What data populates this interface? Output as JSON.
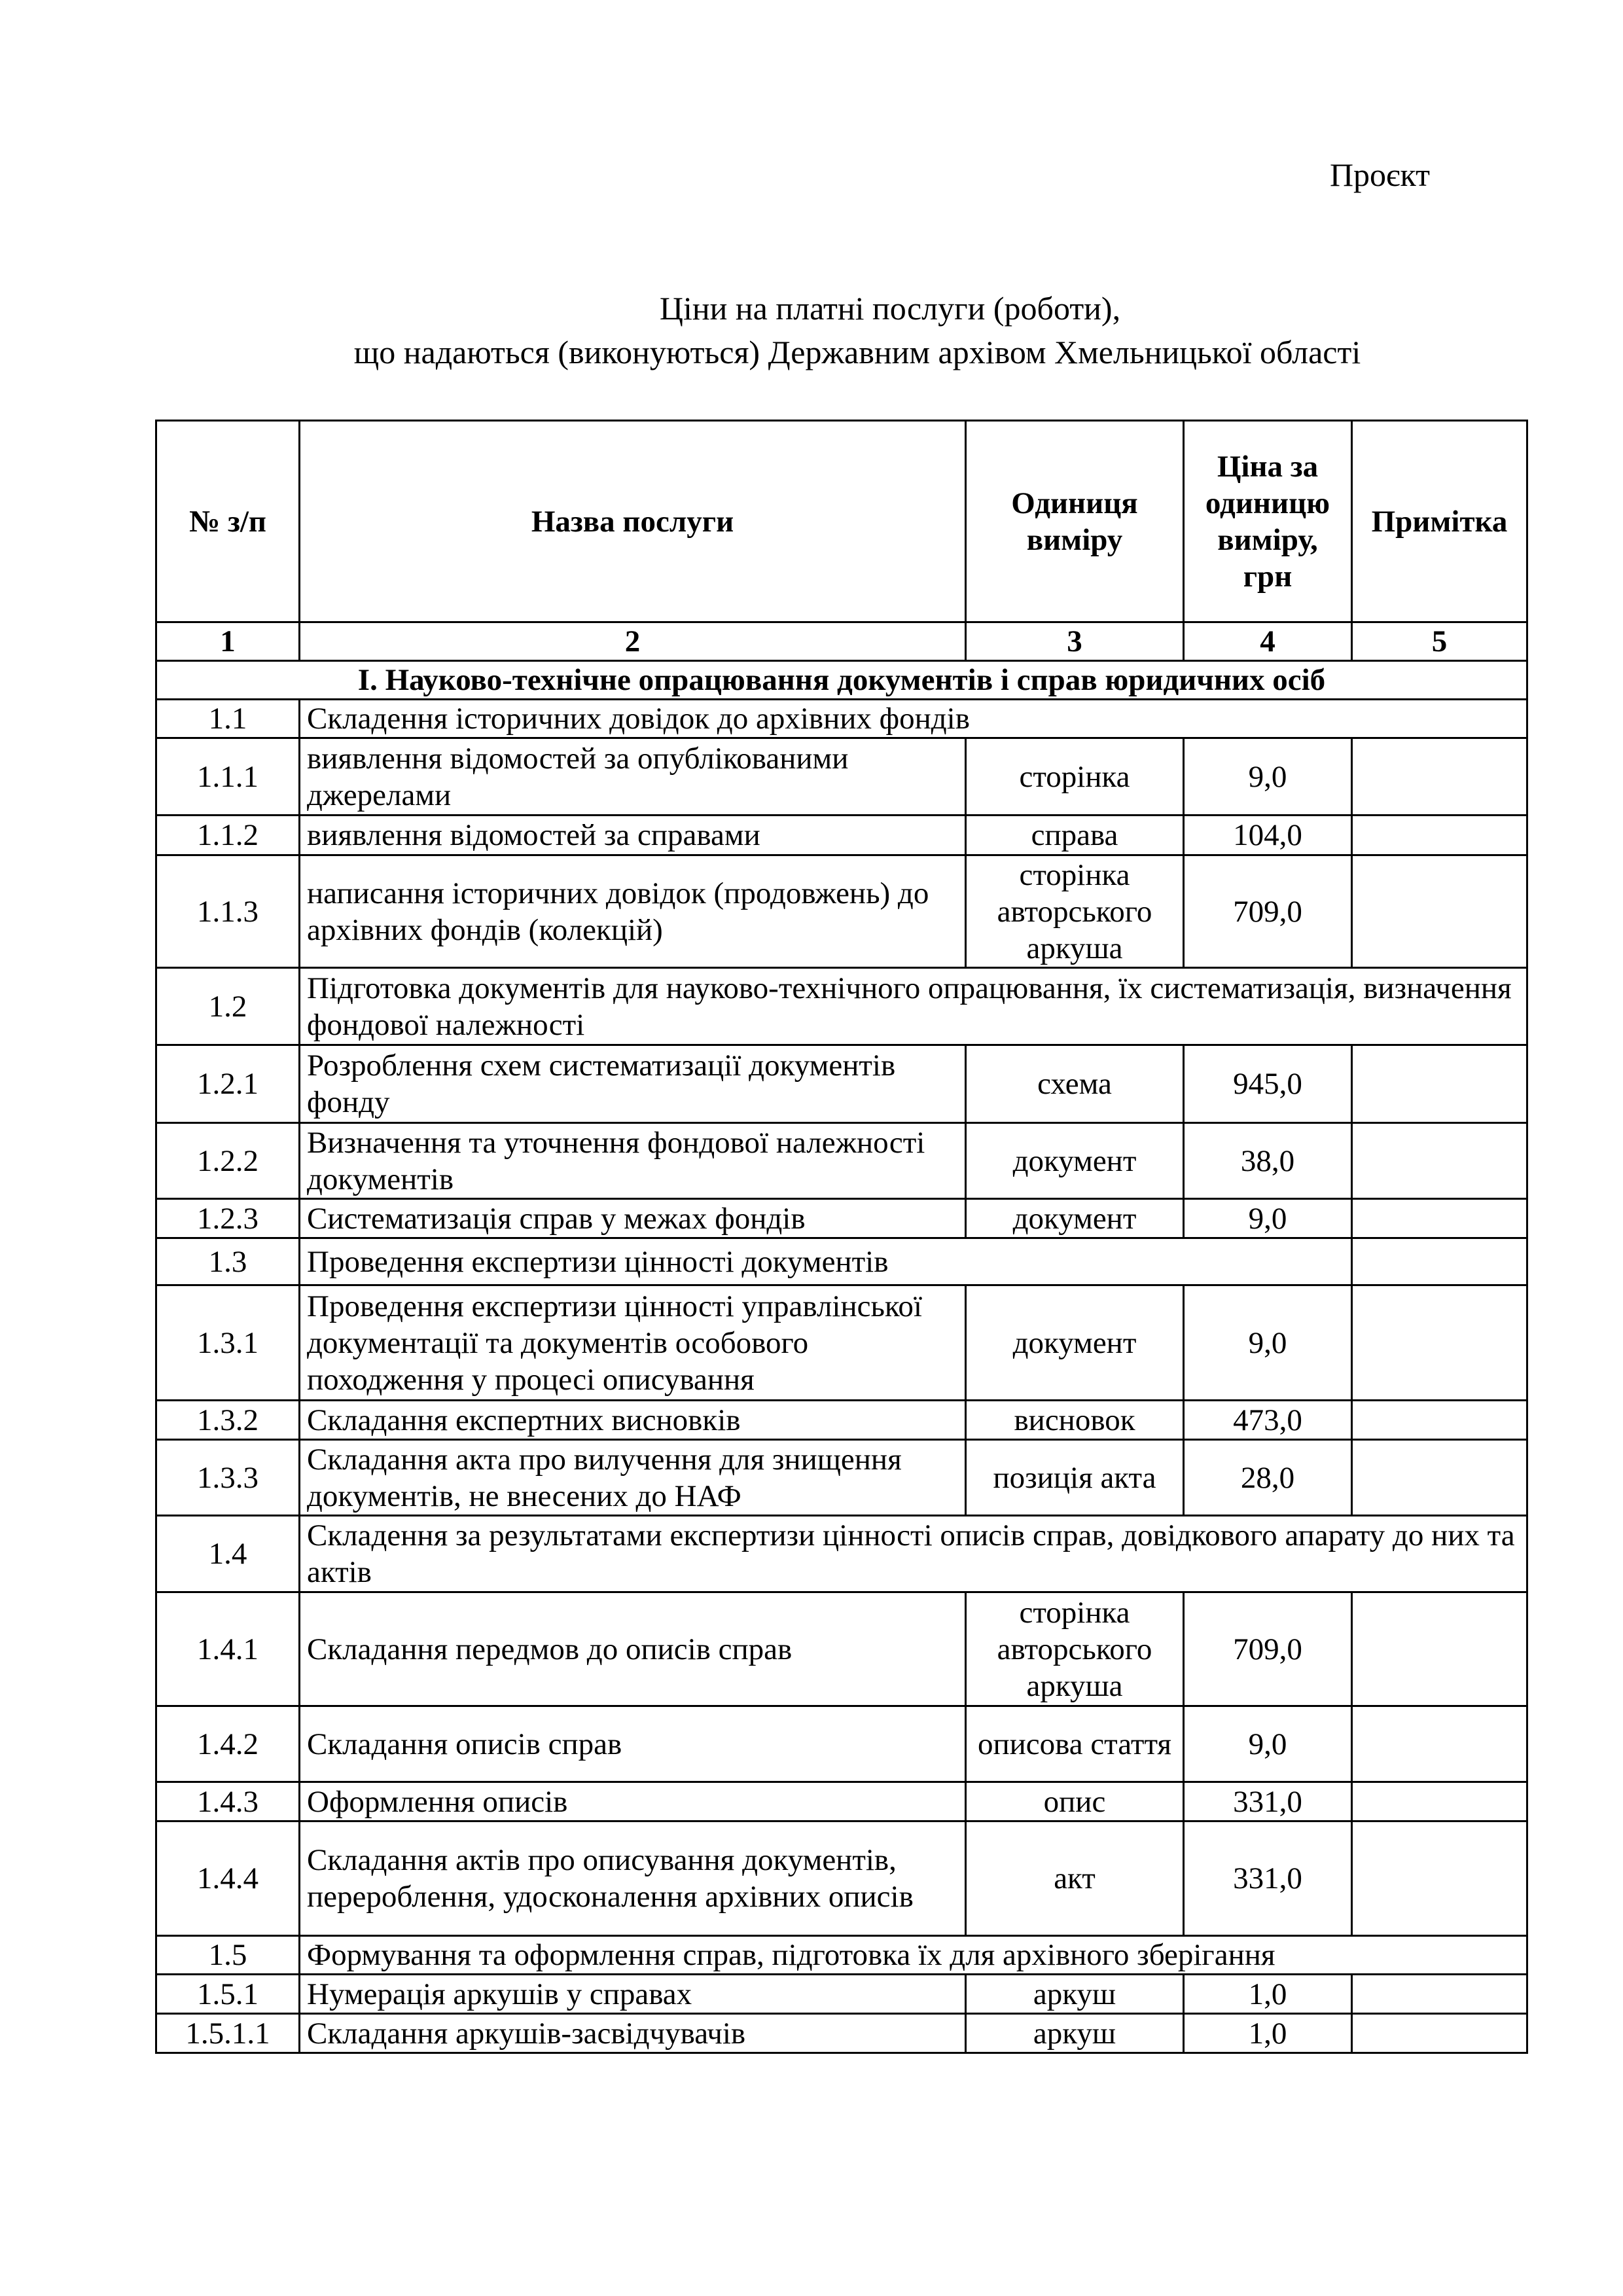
{
  "status_label": "Проєкт",
  "title": {
    "line1": "Ціни на платні послуги (роботи),",
    "line2": "що надаються (виконуються) Державним архівом Хмельницької області"
  },
  "table": {
    "headers": [
      "№ з/п",
      "Назва послуги",
      "Одиниця виміру",
      "Ціна за одиницю виміру, грн",
      "Примітка"
    ],
    "column_numbers": [
      "1",
      "2",
      "3",
      "4",
      "5"
    ],
    "rows": [
      {
        "type": "section",
        "name": "І. Науково-технічне опрацювання документів і справ юридичних осіб"
      },
      {
        "type": "group",
        "no": "1.1",
        "name": "Складення історичних довідок  до архівних фондів"
      },
      {
        "type": "item",
        "no": "1.1.1",
        "name": "виявлення відомостей за опублікованими джерелами",
        "unit": "сторінка",
        "price": "9,0",
        "note": ""
      },
      {
        "type": "item",
        "no": "1.1.2",
        "name": "виявлення відомостей за справами",
        "unit": "справа",
        "price": "104,0",
        "note": ""
      },
      {
        "type": "item",
        "no": "1.1.3",
        "name": "написання історичних довідок (продовжень) до архівних фондів (колекцій)",
        "unit": "сторінка авторського аркуша",
        "price": "709,0",
        "note": ""
      },
      {
        "type": "group",
        "no": "1.2",
        "name": "Підготовка документів для науково-технічного опрацювання, їх систематизація, визначення фондової належності"
      },
      {
        "type": "item",
        "no": "1.2.1",
        "name": "Розроблення схем систематизації документів фонду",
        "unit": "схема",
        "price": "945,0",
        "note": ""
      },
      {
        "type": "item",
        "no": "1.2.2",
        "name": "Визначення та уточнення фондової належності документів",
        "unit": "документ",
        "price": "38,0",
        "note": ""
      },
      {
        "type": "item",
        "no": "1.2.3",
        "name": "Систематизація справ у межах фондів",
        "unit": "документ",
        "price": "9,0",
        "note": ""
      },
      {
        "type": "group3",
        "no": "1.3",
        "name": "Проведення експертизи цінності документів",
        "note": ""
      },
      {
        "type": "item",
        "no": "1.3.1",
        "name": "Проведення експертизи цінності управлінської документації та документів особового походження у процесі описування",
        "unit": "документ",
        "price": "9,0",
        "note": ""
      },
      {
        "type": "item",
        "no": "1.3.2",
        "name": "Складання експертних висновків",
        "unit": "висновок",
        "price": "473,0",
        "note": ""
      },
      {
        "type": "item",
        "no": "1.3.3",
        "name": "Складання акта про вилучення для знищення документів, не внесених до НАФ",
        "unit": "позиція акта",
        "price": "28,0",
        "note": ""
      },
      {
        "type": "group",
        "no": "1.4",
        "name": "Складення за результатами експертизи цінності описів справ, довідкового апарату до них та актів"
      },
      {
        "type": "item",
        "no": "1.4.1",
        "name": "Складання передмов до описів справ",
        "unit": "сторінка авторського аркуша",
        "price": "709,0",
        "note": ""
      },
      {
        "type": "item",
        "no": "1.4.2",
        "name": "Складання описів справ",
        "unit": "описова стаття",
        "price": "9,0",
        "note": ""
      },
      {
        "type": "item",
        "no": "1.4.3",
        "name": "Оформлення описів",
        "unit": "опис",
        "price": "331,0",
        "note": ""
      },
      {
        "type": "item",
        "no": "1.4.4",
        "name": "Складання актів про описування документів, перероблення, удосконалення архівних описів",
        "unit": "акт",
        "price": "331,0",
        "note": ""
      },
      {
        "type": "group",
        "no": "1.5",
        "name": "Формування та оформлення справ, підготовка їх для архівного зберігання"
      },
      {
        "type": "item",
        "no": "1.5.1",
        "name": "Нумерація аркушів у справах",
        "unit": "аркуш",
        "price": "1,0",
        "note": ""
      },
      {
        "type": "item",
        "no": "1.5.1.1",
        "name": "Складання аркушів-засвідчувачів",
        "unit": "аркуш",
        "price": "1,0",
        "note": ""
      }
    ]
  }
}
